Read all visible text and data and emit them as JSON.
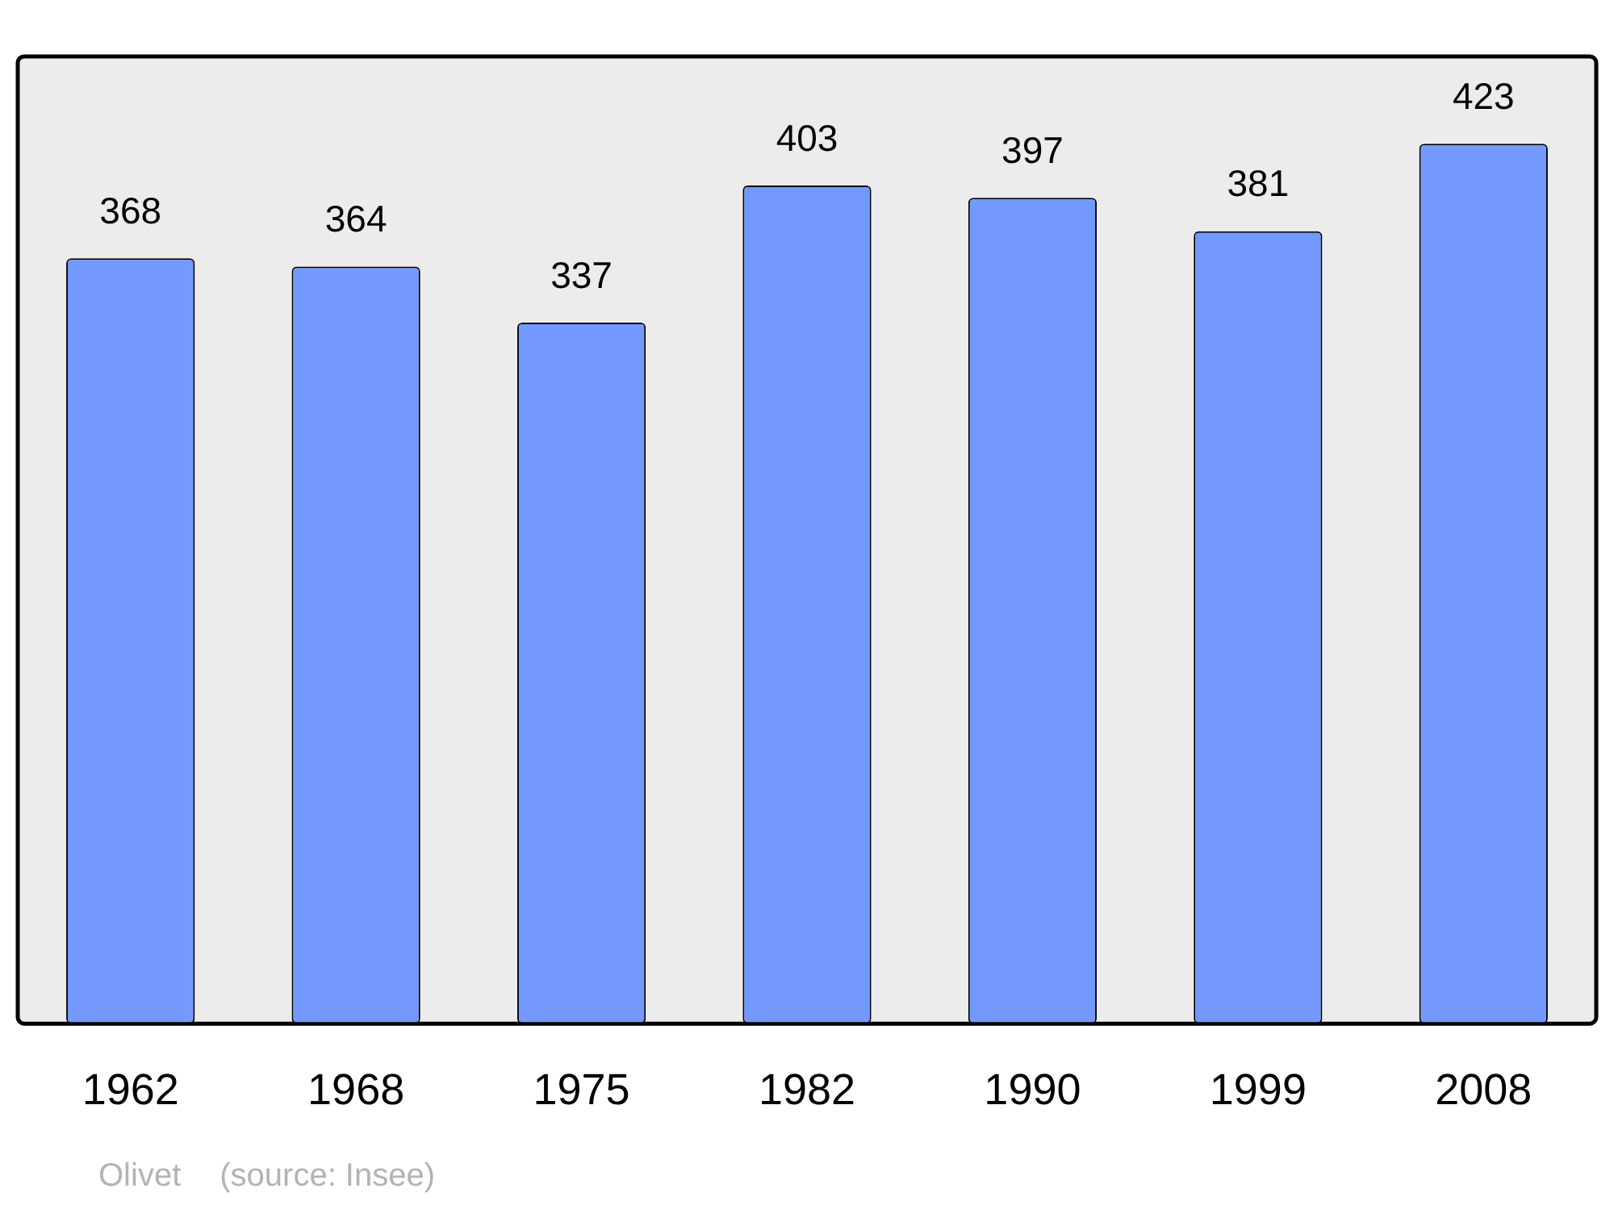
{
  "chart_data": {
    "type": "bar",
    "categories": [
      "1962",
      "1968",
      "1975",
      "1982",
      "1990",
      "1999",
      "2008"
    ],
    "values": [
      368,
      364,
      337,
      403,
      397,
      381,
      423
    ],
    "color": "#7399ff",
    "ylim": [
      0,
      465
    ],
    "tick_labels": "x",
    "data_labels": true,
    "grid": false,
    "legend": false,
    "annotations": [
      "Olivet",
      "(source: Insee)"
    ]
  }
}
